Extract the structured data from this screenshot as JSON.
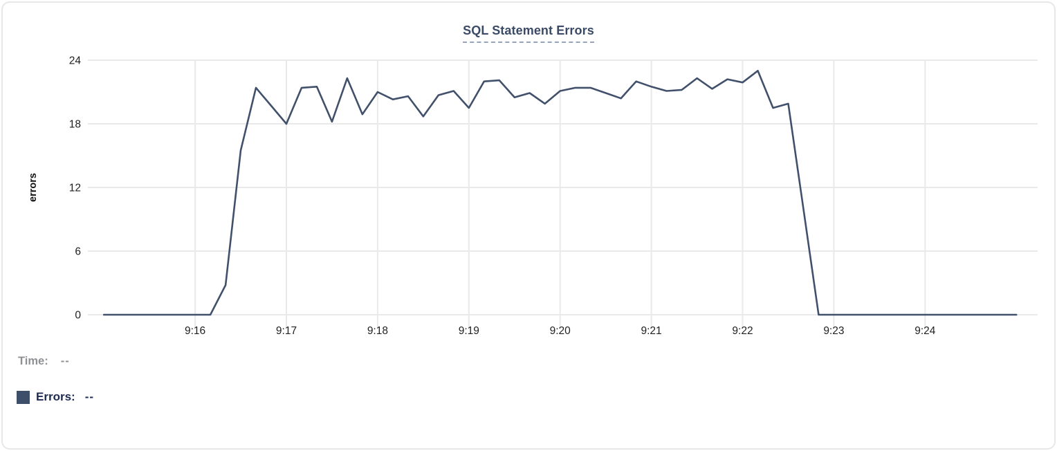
{
  "chart_data": {
    "type": "line",
    "title": "SQL Statement Errors",
    "xlabel": "",
    "ylabel": "errors",
    "ylim": [
      0,
      24
    ],
    "yticks": [
      0,
      6,
      12,
      18,
      24
    ],
    "xticks": [
      "9:16",
      "9:17",
      "9:18",
      "9:19",
      "9:20",
      "9:21",
      "9:22",
      "9:23",
      "9:24"
    ],
    "x_domain": [
      "9:14:54",
      "9:25:14"
    ],
    "grid": true,
    "legend_position": "bottom-left",
    "series": [
      {
        "name": "Errors",
        "color": "#41506b",
        "points": [
          [
            "9:15:00",
            0
          ],
          [
            "9:15:10",
            0
          ],
          [
            "9:15:20",
            0
          ],
          [
            "9:15:30",
            0
          ],
          [
            "9:15:40",
            0
          ],
          [
            "9:15:50",
            0
          ],
          [
            "9:16:00",
            0
          ],
          [
            "9:16:10",
            0
          ],
          [
            "9:16:20",
            2.8
          ],
          [
            "9:16:30",
            15.5
          ],
          [
            "9:16:40",
            21.4
          ],
          [
            "9:16:50",
            19.7
          ],
          [
            "9:17:00",
            18.0
          ],
          [
            "9:17:10",
            21.4
          ],
          [
            "9:17:20",
            21.5
          ],
          [
            "9:17:30",
            18.2
          ],
          [
            "9:17:40",
            22.3
          ],
          [
            "9:17:50",
            18.9
          ],
          [
            "9:18:00",
            21.0
          ],
          [
            "9:18:10",
            20.3
          ],
          [
            "9:18:20",
            20.6
          ],
          [
            "9:18:30",
            18.7
          ],
          [
            "9:18:40",
            20.7
          ],
          [
            "9:18:50",
            21.1
          ],
          [
            "9:19:00",
            19.5
          ],
          [
            "9:19:10",
            22.0
          ],
          [
            "9:19:20",
            22.1
          ],
          [
            "9:19:30",
            20.5
          ],
          [
            "9:19:40",
            20.9
          ],
          [
            "9:19:50",
            19.9
          ],
          [
            "9:20:00",
            21.1
          ],
          [
            "9:20:10",
            21.4
          ],
          [
            "9:20:20",
            21.4
          ],
          [
            "9:20:30",
            20.9
          ],
          [
            "9:20:40",
            20.4
          ],
          [
            "9:20:50",
            22.0
          ],
          [
            "9:21:00",
            21.5
          ],
          [
            "9:21:10",
            21.1
          ],
          [
            "9:21:20",
            21.2
          ],
          [
            "9:21:30",
            22.3
          ],
          [
            "9:21:40",
            21.3
          ],
          [
            "9:21:50",
            22.2
          ],
          [
            "9:22:00",
            21.9
          ],
          [
            "9:22:10",
            23.0
          ],
          [
            "9:22:20",
            19.5
          ],
          [
            "9:22:30",
            19.9
          ],
          [
            "9:22:40",
            10.0
          ],
          [
            "9:22:50",
            0
          ],
          [
            "9:23:00",
            0
          ],
          [
            "9:23:10",
            0
          ],
          [
            "9:23:20",
            0
          ],
          [
            "9:23:30",
            0
          ],
          [
            "9:23:40",
            0
          ],
          [
            "9:23:50",
            0
          ],
          [
            "9:24:00",
            0
          ],
          [
            "9:24:10",
            0
          ],
          [
            "9:24:20",
            0
          ],
          [
            "9:24:30",
            0
          ],
          [
            "9:24:40",
            0
          ],
          [
            "9:24:50",
            0
          ],
          [
            "9:25:00",
            0
          ]
        ]
      }
    ]
  },
  "tooltip": {
    "time_label": "Time:",
    "time_value": "--",
    "errors_label": "Errors:",
    "errors_value": "--",
    "swatch_color": "#3e4f6a"
  },
  "colors": {
    "line": "#41506b",
    "grid": "#e9e9e9",
    "title_text": "#3b4a66",
    "axis_text": "#1f1f1f",
    "tooltip_time_text": "#8f9094",
    "tooltip_errors_text": "#1c2950",
    "card_border": "#e7e7e7"
  }
}
